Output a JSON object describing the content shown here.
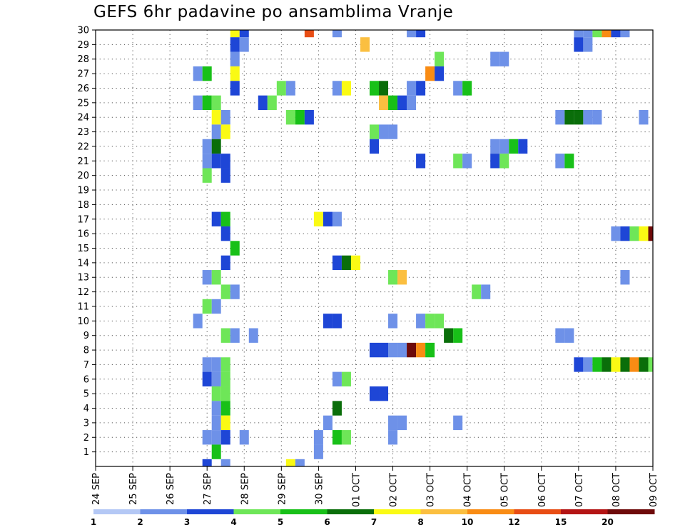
{
  "chart_data": {
    "type": "heatmap",
    "title": "GEFS 6hr padavine po ansamblima Vranje",
    "xlabel": "",
    "ylabel": "",
    "x_tick_labels": [
      "24 SEP",
      "25 SEP",
      "26 SEP",
      "27 SEP",
      "28 SEP",
      "29 SEP",
      "30 SEP",
      "01 OCT",
      "02 OCT",
      "03 OCT",
      "04 OCT",
      "05 OCT",
      "06 OCT",
      "07 OCT",
      "08 OCT",
      "09 OCT"
    ],
    "y_tick_labels": [
      "1",
      "2",
      "3",
      "4",
      "5",
      "6",
      "7",
      "8",
      "9",
      "10",
      "11",
      "12",
      "13",
      "14",
      "15",
      "16",
      "17",
      "18",
      "19",
      "20",
      "21",
      "22",
      "23",
      "24",
      "25",
      "26",
      "27",
      "28",
      "29",
      "30"
    ],
    "x_unit": "days (6-hour steps)",
    "x_range": [
      0,
      15
    ],
    "y_range": [
      0,
      30
    ],
    "grid": true,
    "colorbar": {
      "position": "bottom",
      "boundaries": [
        "1",
        "2",
        "3",
        "4",
        "5",
        "6",
        "7",
        "8",
        "10",
        "12",
        "15",
        "20"
      ],
      "colors": [
        "#b4c8f5",
        "#6e91e8",
        "#1e46d6",
        "#6ee658",
        "#18c018",
        "#0a6e0a",
        "#fafa14",
        "#fbbf40",
        "#f98c14",
        "#e84d14",
        "#b41414",
        "#6e0a0a"
      ]
    },
    "cells": [
      [
        3.75,
        30,
        6
      ],
      [
        4.0,
        30,
        2
      ],
      [
        5.75,
        30,
        9
      ],
      [
        6.5,
        30,
        1
      ],
      [
        8.5,
        30,
        1
      ],
      [
        8.75,
        30,
        2
      ],
      [
        13.0,
        30,
        1
      ],
      [
        13.25,
        30,
        1
      ],
      [
        13.5,
        30,
        3
      ],
      [
        13.75,
        30,
        8
      ],
      [
        14.0,
        30,
        2
      ],
      [
        14.25,
        30,
        1
      ],
      [
        3.75,
        29,
        2
      ],
      [
        4.0,
        29,
        1
      ],
      [
        7.25,
        29,
        7
      ],
      [
        13.0,
        29,
        2
      ],
      [
        13.25,
        29,
        1
      ],
      [
        3.75,
        28,
        1
      ],
      [
        9.25,
        28,
        3
      ],
      [
        10.75,
        28,
        1
      ],
      [
        11.0,
        28,
        1
      ],
      [
        2.75,
        27,
        1
      ],
      [
        3.0,
        27,
        4
      ],
      [
        3.75,
        27,
        6
      ],
      [
        9.0,
        27,
        8
      ],
      [
        9.25,
        27,
        2
      ],
      [
        3.75,
        26,
        2
      ],
      [
        5.0,
        26,
        3
      ],
      [
        5.25,
        26,
        1
      ],
      [
        6.5,
        26,
        1
      ],
      [
        6.75,
        26,
        6
      ],
      [
        7.5,
        26,
        4
      ],
      [
        7.75,
        26,
        5
      ],
      [
        8.5,
        26,
        1
      ],
      [
        8.75,
        26,
        2
      ],
      [
        9.75,
        26,
        1
      ],
      [
        10.0,
        26,
        4
      ],
      [
        2.75,
        25,
        1
      ],
      [
        3.0,
        25,
        4
      ],
      [
        3.25,
        25,
        3
      ],
      [
        4.5,
        25,
        2
      ],
      [
        4.75,
        25,
        3
      ],
      [
        7.75,
        25,
        7
      ],
      [
        8.0,
        25,
        4
      ],
      [
        8.25,
        25,
        2
      ],
      [
        8.5,
        25,
        1
      ],
      [
        3.25,
        24,
        6
      ],
      [
        3.5,
        24,
        1
      ],
      [
        5.25,
        24,
        3
      ],
      [
        5.5,
        24,
        4
      ],
      [
        5.75,
        24,
        2
      ],
      [
        12.5,
        24,
        1
      ],
      [
        12.75,
        24,
        5
      ],
      [
        13.0,
        24,
        5
      ],
      [
        13.25,
        24,
        1
      ],
      [
        13.5,
        24,
        1
      ],
      [
        14.75,
        24,
        1
      ],
      [
        3.25,
        23,
        1
      ],
      [
        3.5,
        23,
        6
      ],
      [
        7.5,
        23,
        3
      ],
      [
        7.75,
        23,
        1
      ],
      [
        8.0,
        23,
        1
      ],
      [
        3.0,
        22,
        1
      ],
      [
        3.25,
        22,
        5
      ],
      [
        7.5,
        22,
        2
      ],
      [
        10.75,
        22,
        1
      ],
      [
        11.0,
        22,
        1
      ],
      [
        11.25,
        22,
        4
      ],
      [
        11.5,
        22,
        2
      ],
      [
        3.0,
        21,
        1
      ],
      [
        3.25,
        21,
        2
      ],
      [
        3.5,
        21,
        2
      ],
      [
        8.75,
        21,
        2
      ],
      [
        9.75,
        21,
        3
      ],
      [
        10.0,
        21,
        1
      ],
      [
        10.75,
        21,
        2
      ],
      [
        11.0,
        21,
        3
      ],
      [
        12.5,
        21,
        1
      ],
      [
        12.75,
        21,
        4
      ],
      [
        3.0,
        20,
        3
      ],
      [
        3.5,
        20,
        2
      ],
      [
        3.25,
        17,
        2
      ],
      [
        3.5,
        17,
        4
      ],
      [
        6.0,
        17,
        6
      ],
      [
        6.25,
        17,
        2
      ],
      [
        6.5,
        17,
        1
      ],
      [
        3.5,
        16,
        2
      ],
      [
        14.0,
        16,
        1
      ],
      [
        14.25,
        16,
        2
      ],
      [
        14.5,
        16,
        3
      ],
      [
        14.75,
        16,
        6
      ],
      [
        15.0,
        16,
        11
      ],
      [
        3.75,
        15,
        4
      ],
      [
        3.5,
        14,
        2
      ],
      [
        6.5,
        14,
        2
      ],
      [
        6.75,
        14,
        5
      ],
      [
        7.0,
        14,
        6
      ],
      [
        3.0,
        13,
        1
      ],
      [
        3.25,
        13,
        3
      ],
      [
        8.0,
        13,
        3
      ],
      [
        8.25,
        13,
        7
      ],
      [
        14.25,
        13,
        1
      ],
      [
        3.5,
        12,
        3
      ],
      [
        3.75,
        12,
        1
      ],
      [
        10.25,
        12,
        3
      ],
      [
        10.5,
        12,
        1
      ],
      [
        3.0,
        11,
        3
      ],
      [
        3.25,
        11,
        1
      ],
      [
        2.75,
        10,
        1
      ],
      [
        6.25,
        10,
        2
      ],
      [
        6.5,
        10,
        2
      ],
      [
        8.0,
        10,
        1
      ],
      [
        8.75,
        10,
        1
      ],
      [
        9.0,
        10,
        3
      ],
      [
        9.25,
        10,
        3
      ],
      [
        3.5,
        9,
        3
      ],
      [
        3.75,
        9,
        1
      ],
      [
        4.25,
        9,
        1
      ],
      [
        9.5,
        9,
        5
      ],
      [
        9.75,
        9,
        4
      ],
      [
        12.5,
        9,
        1
      ],
      [
        12.75,
        9,
        1
      ],
      [
        7.5,
        8,
        2
      ],
      [
        7.75,
        8,
        2
      ],
      [
        8.0,
        8,
        1
      ],
      [
        8.25,
        8,
        1
      ],
      [
        8.5,
        8,
        11
      ],
      [
        8.75,
        8,
        8
      ],
      [
        9.0,
        8,
        4
      ],
      [
        3.0,
        7,
        1
      ],
      [
        3.25,
        7,
        1
      ],
      [
        3.5,
        7,
        3
      ],
      [
        13.0,
        7,
        2
      ],
      [
        13.25,
        7,
        1
      ],
      [
        13.5,
        7,
        4
      ],
      [
        13.75,
        7,
        5
      ],
      [
        14.0,
        7,
        6
      ],
      [
        14.25,
        7,
        5
      ],
      [
        14.5,
        7,
        8
      ],
      [
        14.75,
        7,
        5
      ],
      [
        15.0,
        7,
        3
      ],
      [
        3.0,
        6,
        2
      ],
      [
        3.25,
        6,
        1
      ],
      [
        3.5,
        6,
        3
      ],
      [
        6.5,
        6,
        1
      ],
      [
        6.75,
        6,
        3
      ],
      [
        3.25,
        5,
        3
      ],
      [
        3.5,
        5,
        3
      ],
      [
        7.5,
        5,
        2
      ],
      [
        7.75,
        5,
        2
      ],
      [
        3.25,
        4,
        1
      ],
      [
        3.5,
        4,
        4
      ],
      [
        6.5,
        4,
        5
      ],
      [
        3.25,
        3,
        1
      ],
      [
        3.5,
        3,
        6
      ],
      [
        6.25,
        3,
        1
      ],
      [
        8.0,
        3,
        1
      ],
      [
        8.25,
        3,
        1
      ],
      [
        9.75,
        3,
        1
      ],
      [
        3.0,
        2,
        1
      ],
      [
        3.25,
        2,
        1
      ],
      [
        3.5,
        2,
        2
      ],
      [
        4.0,
        2,
        1
      ],
      [
        6.0,
        2,
        1
      ],
      [
        6.5,
        2,
        4
      ],
      [
        6.75,
        2,
        3
      ],
      [
        8.0,
        2,
        1
      ],
      [
        3.25,
        1,
        4
      ],
      [
        6.0,
        1,
        1
      ],
      [
        3.0,
        0,
        2
      ],
      [
        3.5,
        0,
        1
      ],
      [
        5.25,
        0,
        6
      ],
      [
        5.5,
        0,
        1
      ]
    ]
  }
}
